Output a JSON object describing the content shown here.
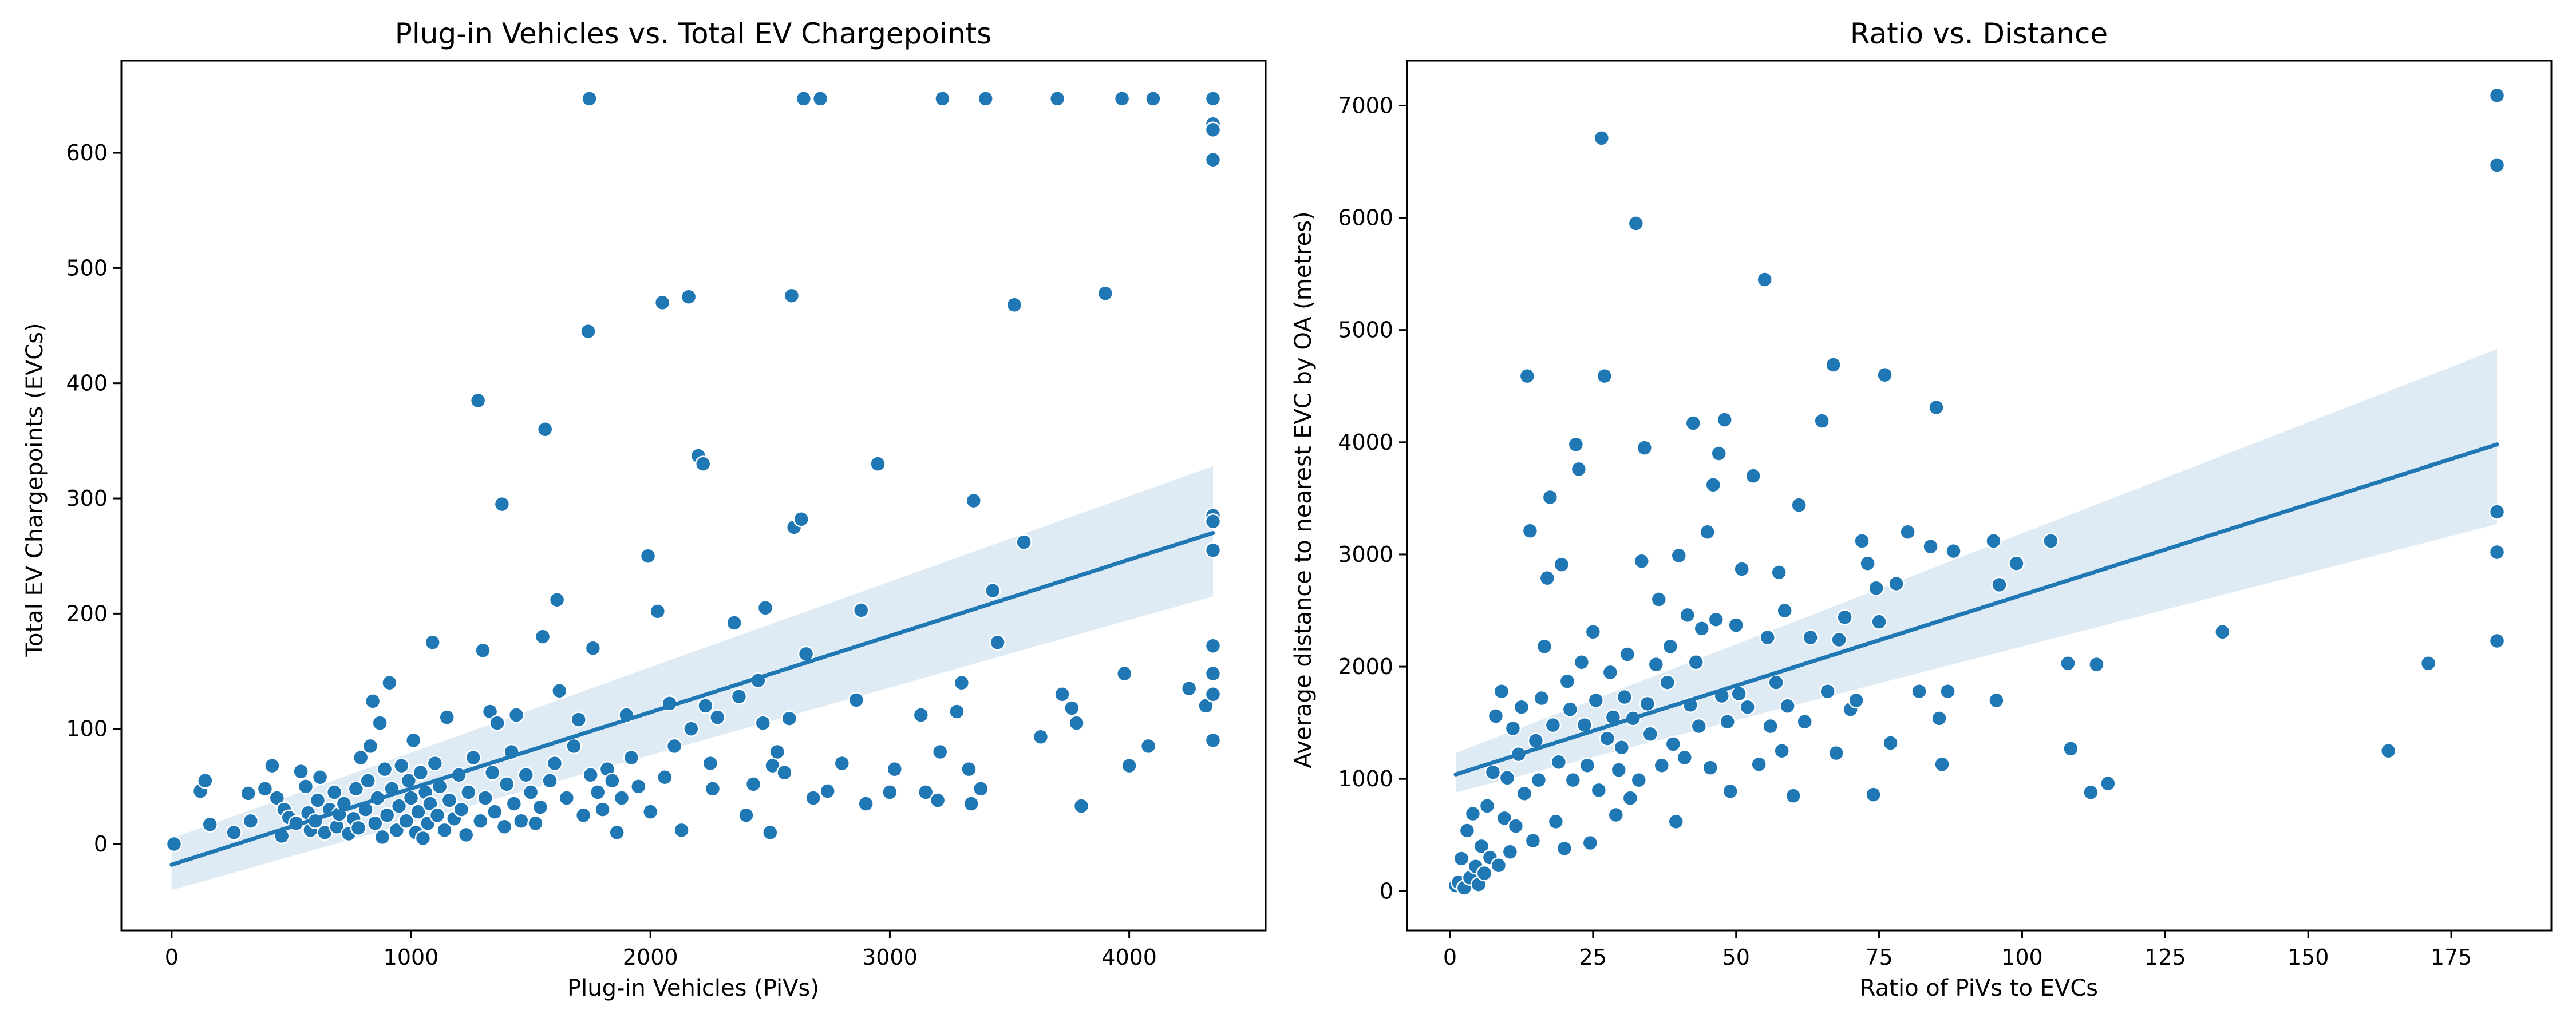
{
  "chart_data": [
    {
      "type": "scatter",
      "title": "Plug-in Vehicles vs. Total EV Chargepoints",
      "xlabel": "Plug-in Vehicles (PiVs)",
      "ylabel": "Total EV Chargepoints (EVCs)",
      "xlim": [
        -210,
        4570
      ],
      "ylim": [
        -75,
        680
      ],
      "xticks": [
        0,
        1000,
        2000,
        3000,
        4000
      ],
      "yticks": [
        0,
        100,
        200,
        300,
        400,
        500,
        600
      ],
      "grid": false,
      "regression": {
        "x": [
          0,
          4350
        ],
        "y": [
          -18,
          270
        ],
        "ci_lower": [
          -40,
          215
        ],
        "ci_upper": [
          5,
          328
        ]
      },
      "points": [
        [
          10,
          0
        ],
        [
          120,
          46
        ],
        [
          140,
          55
        ],
        [
          160,
          17
        ],
        [
          260,
          10
        ],
        [
          320,
          44
        ],
        [
          330,
          20
        ],
        [
          390,
          48
        ],
        [
          420,
          68
        ],
        [
          440,
          40
        ],
        [
          460,
          7
        ],
        [
          470,
          30
        ],
        [
          490,
          23
        ],
        [
          520,
          18
        ],
        [
          540,
          63
        ],
        [
          560,
          50
        ],
        [
          570,
          27
        ],
        [
          580,
          12
        ],
        [
          600,
          20
        ],
        [
          610,
          38
        ],
        [
          620,
          58
        ],
        [
          640,
          10
        ],
        [
          660,
          30
        ],
        [
          680,
          45
        ],
        [
          690,
          15
        ],
        [
          700,
          26
        ],
        [
          720,
          35
        ],
        [
          740,
          9
        ],
        [
          760,
          22
        ],
        [
          770,
          48
        ],
        [
          780,
          14
        ],
        [
          790,
          75
        ],
        [
          810,
          30
        ],
        [
          820,
          55
        ],
        [
          830,
          85
        ],
        [
          840,
          124
        ],
        [
          850,
          18
        ],
        [
          860,
          40
        ],
        [
          870,
          105
        ],
        [
          880,
          6
        ],
        [
          890,
          65
        ],
        [
          900,
          25
        ],
        [
          910,
          140
        ],
        [
          920,
          48
        ],
        [
          940,
          12
        ],
        [
          950,
          33
        ],
        [
          960,
          68
        ],
        [
          980,
          20
        ],
        [
          990,
          55
        ],
        [
          1000,
          40
        ],
        [
          1010,
          90
        ],
        [
          1020,
          10
        ],
        [
          1030,
          28
        ],
        [
          1040,
          62
        ],
        [
          1050,
          5
        ],
        [
          1060,
          45
        ],
        [
          1070,
          18
        ],
        [
          1080,
          35
        ],
        [
          1090,
          175
        ],
        [
          1100,
          70
        ],
        [
          1110,
          25
        ],
        [
          1120,
          50
        ],
        [
          1140,
          12
        ],
        [
          1150,
          110
        ],
        [
          1160,
          38
        ],
        [
          1180,
          22
        ],
        [
          1200,
          60
        ],
        [
          1210,
          30
        ],
        [
          1230,
          8
        ],
        [
          1240,
          45
        ],
        [
          1260,
          75
        ],
        [
          1280,
          385
        ],
        [
          1290,
          20
        ],
        [
          1300,
          168
        ],
        [
          1310,
          40
        ],
        [
          1330,
          115
        ],
        [
          1340,
          62
        ],
        [
          1350,
          28
        ],
        [
          1360,
          105
        ],
        [
          1380,
          295
        ],
        [
          1390,
          15
        ],
        [
          1400,
          52
        ],
        [
          1420,
          80
        ],
        [
          1430,
          35
        ],
        [
          1440,
          112
        ],
        [
          1460,
          20
        ],
        [
          1480,
          60
        ],
        [
          1500,
          45
        ],
        [
          1520,
          18
        ],
        [
          1540,
          32
        ],
        [
          1550,
          180
        ],
        [
          1560,
          360
        ],
        [
          1580,
          55
        ],
        [
          1600,
          70
        ],
        [
          1610,
          212
        ],
        [
          1620,
          133
        ],
        [
          1650,
          40
        ],
        [
          1680,
          85
        ],
        [
          1700,
          108
        ],
        [
          1720,
          25
        ],
        [
          1740,
          445
        ],
        [
          1745,
          647
        ],
        [
          1750,
          60
        ],
        [
          1760,
          170
        ],
        [
          1780,
          45
        ],
        [
          1800,
          30
        ],
        [
          1820,
          65
        ],
        [
          1840,
          55
        ],
        [
          1860,
          10
        ],
        [
          1880,
          40
        ],
        [
          1900,
          112
        ],
        [
          1920,
          75
        ],
        [
          1950,
          50
        ],
        [
          1990,
          250
        ],
        [
          2000,
          28
        ],
        [
          2030,
          202
        ],
        [
          2050,
          470
        ],
        [
          2060,
          58
        ],
        [
          2080,
          122
        ],
        [
          2100,
          85
        ],
        [
          2130,
          12
        ],
        [
          2160,
          475
        ],
        [
          2170,
          100
        ],
        [
          2200,
          337
        ],
        [
          2220,
          330
        ],
        [
          2230,
          120
        ],
        [
          2250,
          70
        ],
        [
          2260,
          48
        ],
        [
          2280,
          110
        ],
        [
          2350,
          192
        ],
        [
          2370,
          128
        ],
        [
          2400,
          25
        ],
        [
          2430,
          52
        ],
        [
          2450,
          142
        ],
        [
          2470,
          105
        ],
        [
          2480,
          205
        ],
        [
          2500,
          10
        ],
        [
          2510,
          68
        ],
        [
          2530,
          80
        ],
        [
          2560,
          62
        ],
        [
          2580,
          109
        ],
        [
          2590,
          476
        ],
        [
          2600,
          275
        ],
        [
          2630,
          282
        ],
        [
          2640,
          647
        ],
        [
          2650,
          165
        ],
        [
          2680,
          40
        ],
        [
          2710,
          647
        ],
        [
          2740,
          46
        ],
        [
          2800,
          70
        ],
        [
          2860,
          125
        ],
        [
          2880,
          203
        ],
        [
          2900,
          35
        ],
        [
          2950,
          330
        ],
        [
          3000,
          45
        ],
        [
          3020,
          65
        ],
        [
          3130,
          112
        ],
        [
          3150,
          45
        ],
        [
          3200,
          38
        ],
        [
          3210,
          80
        ],
        [
          3220,
          647
        ],
        [
          3280,
          115
        ],
        [
          3300,
          140
        ],
        [
          3330,
          65
        ],
        [
          3340,
          35
        ],
        [
          3350,
          298
        ],
        [
          3380,
          48
        ],
        [
          3400,
          647
        ],
        [
          3430,
          220
        ],
        [
          3450,
          175
        ],
        [
          3520,
          468
        ],
        [
          3560,
          262
        ],
        [
          3630,
          93
        ],
        [
          3700,
          647
        ],
        [
          3720,
          130
        ],
        [
          3760,
          118
        ],
        [
          3780,
          105
        ],
        [
          3800,
          33
        ],
        [
          3900,
          478
        ],
        [
          3970,
          647
        ],
        [
          3980,
          148
        ],
        [
          4000,
          68
        ],
        [
          4080,
          85
        ],
        [
          4100,
          647
        ],
        [
          4250,
          135
        ],
        [
          4320,
          120
        ],
        [
          4350,
          647
        ],
        [
          4350,
          625
        ],
        [
          4350,
          620
        ],
        [
          4350,
          594
        ],
        [
          4350,
          285
        ],
        [
          4350,
          280
        ],
        [
          4350,
          255
        ],
        [
          4350,
          172
        ],
        [
          4350,
          148
        ],
        [
          4350,
          130
        ],
        [
          4350,
          90
        ]
      ]
    },
    {
      "type": "scatter",
      "title": "Ratio vs. Distance",
      "xlabel": "Ratio of PiVs to EVCs",
      "ylabel": "Average distance to nearest EVC by OA (metres)",
      "xlim": [
        -7.5,
        192.5
      ],
      "ylim": [
        -350,
        7400
      ],
      "xticks": [
        0,
        25,
        50,
        75,
        100,
        125,
        150,
        175
      ],
      "yticks": [
        0,
        1000,
        2000,
        3000,
        4000,
        5000,
        6000,
        7000
      ],
      "grid": false,
      "regression": {
        "x": [
          1,
          183
        ],
        "y": [
          1040,
          3980
        ],
        "ci_lower": [
          880,
          3270
        ],
        "ci_upper": [
          1230,
          4830
        ]
      },
      "points": [
        [
          1,
          50
        ],
        [
          1.5,
          80
        ],
        [
          2,
          290
        ],
        [
          2.5,
          30
        ],
        [
          3,
          540
        ],
        [
          3.5,
          120
        ],
        [
          4,
          690
        ],
        [
          4.5,
          220
        ],
        [
          5,
          60
        ],
        [
          5.5,
          400
        ],
        [
          6,
          160
        ],
        [
          6.5,
          760
        ],
        [
          7,
          300
        ],
        [
          7.5,
          1060
        ],
        [
          8,
          1560
        ],
        [
          8.5,
          230
        ],
        [
          9,
          1780
        ],
        [
          9.5,
          650
        ],
        [
          10,
          1010
        ],
        [
          10.5,
          350
        ],
        [
          11,
          1450
        ],
        [
          11.5,
          580
        ],
        [
          12,
          1220
        ],
        [
          12.5,
          1640
        ],
        [
          13,
          870
        ],
        [
          13.5,
          4590
        ],
        [
          14,
          3210
        ],
        [
          14.5,
          450
        ],
        [
          15,
          1340
        ],
        [
          15.5,
          990
        ],
        [
          16,
          1720
        ],
        [
          16.5,
          2180
        ],
        [
          17,
          2790
        ],
        [
          17.5,
          3510
        ],
        [
          18,
          1480
        ],
        [
          18.5,
          620
        ],
        [
          19,
          1150
        ],
        [
          19.5,
          2910
        ],
        [
          20,
          380
        ],
        [
          20.5,
          1870
        ],
        [
          21,
          1620
        ],
        [
          21.5,
          990
        ],
        [
          22,
          3980
        ],
        [
          22.5,
          3760
        ],
        [
          23,
          2040
        ],
        [
          23.5,
          1480
        ],
        [
          24,
          1120
        ],
        [
          24.5,
          430
        ],
        [
          25,
          2310
        ],
        [
          25.5,
          1700
        ],
        [
          26,
          900
        ],
        [
          26.5,
          6710
        ],
        [
          27,
          4590
        ],
        [
          27.5,
          1360
        ],
        [
          28,
          1950
        ],
        [
          28.5,
          1550
        ],
        [
          29,
          680
        ],
        [
          29.5,
          1080
        ],
        [
          30,
          1280
        ],
        [
          30.5,
          1730
        ],
        [
          31,
          2110
        ],
        [
          31.5,
          830
        ],
        [
          32,
          1540
        ],
        [
          32.5,
          5950
        ],
        [
          33,
          990
        ],
        [
          33.5,
          2940
        ],
        [
          34,
          3950
        ],
        [
          34.5,
          1670
        ],
        [
          35,
          1400
        ],
        [
          36,
          2020
        ],
        [
          36.5,
          2600
        ],
        [
          37,
          1120
        ],
        [
          38,
          1860
        ],
        [
          38.5,
          2180
        ],
        [
          39,
          1310
        ],
        [
          39.5,
          620
        ],
        [
          40,
          2990
        ],
        [
          41,
          1190
        ],
        [
          41.5,
          2460
        ],
        [
          42,
          1660
        ],
        [
          42.5,
          4170
        ],
        [
          43,
          2040
        ],
        [
          43.5,
          1470
        ],
        [
          44,
          2340
        ],
        [
          45,
          3200
        ],
        [
          45.5,
          1100
        ],
        [
          46,
          3620
        ],
        [
          46.5,
          2420
        ],
        [
          47,
          3900
        ],
        [
          47.5,
          1740
        ],
        [
          48,
          4200
        ],
        [
          48.5,
          1510
        ],
        [
          49,
          890
        ],
        [
          50,
          2370
        ],
        [
          50.5,
          1760
        ],
        [
          51,
          2870
        ],
        [
          52,
          1640
        ],
        [
          53,
          3700
        ],
        [
          54,
          1130
        ],
        [
          55,
          5450
        ],
        [
          55.5,
          2260
        ],
        [
          56,
          1470
        ],
        [
          57,
          1860
        ],
        [
          57.5,
          2840
        ],
        [
          58,
          1250
        ],
        [
          58.5,
          2500
        ],
        [
          59,
          1650
        ],
        [
          60,
          850
        ],
        [
          61,
          3440
        ],
        [
          62,
          1510
        ],
        [
          63,
          2260
        ],
        [
          65,
          4190
        ],
        [
          66,
          1780
        ],
        [
          67,
          4690
        ],
        [
          67.5,
          1230
        ],
        [
          68,
          2240
        ],
        [
          69,
          2440
        ],
        [
          70,
          1620
        ],
        [
          71,
          1700
        ],
        [
          72,
          3120
        ],
        [
          73,
          2920
        ],
        [
          74,
          860
        ],
        [
          74.5,
          2700
        ],
        [
          75,
          2400
        ],
        [
          76,
          4600
        ],
        [
          77,
          1320
        ],
        [
          78,
          2740
        ],
        [
          80,
          3200
        ],
        [
          82,
          1780
        ],
        [
          84,
          3070
        ],
        [
          85,
          4310
        ],
        [
          85.5,
          1540
        ],
        [
          86,
          1130
        ],
        [
          87,
          1780
        ],
        [
          88,
          3030
        ],
        [
          95,
          3120
        ],
        [
          95.5,
          1700
        ],
        [
          96,
          2730
        ],
        [
          99,
          2920
        ],
        [
          105,
          3120
        ],
        [
          108,
          2030
        ],
        [
          108.5,
          1270
        ],
        [
          112,
          880
        ],
        [
          113,
          2020
        ],
        [
          115,
          960
        ],
        [
          135,
          2310
        ],
        [
          164,
          1250
        ],
        [
          171,
          2030
        ],
        [
          183,
          7090
        ],
        [
          183,
          6470
        ],
        [
          183,
          3380
        ],
        [
          183,
          3020
        ],
        [
          183,
          2230
        ]
      ]
    }
  ]
}
